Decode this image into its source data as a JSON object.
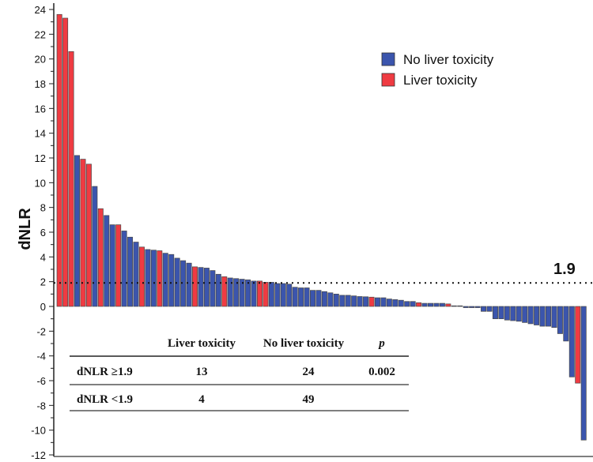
{
  "chart_data": {
    "type": "bar",
    "title": "",
    "xlabel": "",
    "ylabel": "dNLR",
    "ylim": [
      -12,
      24
    ],
    "yticks": [
      -12,
      -10,
      -8,
      -6,
      -4,
      -2,
      0,
      2,
      4,
      6,
      8,
      10,
      12,
      14,
      16,
      18,
      20,
      22,
      24
    ],
    "grid": false,
    "legend_position": "top-right",
    "colors": {
      "no_liver_toxicity": "#3b55ad",
      "liver_toxicity": "#ef3b42"
    },
    "legend": [
      {
        "label": "No liver toxicity",
        "key": "B"
      },
      {
        "label": "Liver toxicity",
        "key": "R"
      }
    ],
    "threshold": {
      "value": 1.9,
      "label": "1.9"
    },
    "values": [
      23.6,
      23.3,
      20.6,
      12.2,
      11.9,
      11.5,
      9.7,
      7.9,
      7.35,
      6.6,
      6.6,
      6.1,
      5.6,
      5.2,
      4.8,
      4.6,
      4.55,
      4.5,
      4.3,
      4.2,
      3.9,
      3.7,
      3.5,
      3.2,
      3.15,
      3.1,
      2.9,
      2.6,
      2.4,
      2.3,
      2.25,
      2.2,
      2.15,
      2.05,
      2.05,
      1.95,
      1.95,
      1.85,
      1.85,
      1.8,
      1.55,
      1.5,
      1.5,
      1.3,
      1.3,
      1.2,
      1.1,
      1.0,
      0.9,
      0.9,
      0.85,
      0.8,
      0.78,
      0.75,
      0.7,
      0.7,
      0.6,
      0.55,
      0.5,
      0.4,
      0.4,
      0.3,
      0.25,
      0.25,
      0.25,
      0.25,
      0.2,
      0.05,
      0.05,
      -0.1,
      -0.1,
      -0.1,
      -0.4,
      -0.4,
      -1.0,
      -1.0,
      -1.1,
      -1.15,
      -1.2,
      -1.3,
      -1.4,
      -1.5,
      -1.6,
      -1.6,
      -1.7,
      -2.2,
      -2.8,
      -5.7,
      -6.2,
      -10.8
    ],
    "groups": "RRRBRRBRBBRBBBRBBRBBBBBRBBBBRBBBBBRRBBBBBBBBBBBBBBBBBRBBBBBBBRBBBBRBBBBBBBBBBBBBBBBBBBBBRB",
    "table": {
      "headers": [
        "",
        "Liver toxicity",
        "No liver toxicity",
        "p"
      ],
      "rows": [
        [
          "dNLR ≥1.9",
          "13",
          "24",
          "0.002"
        ],
        [
          "dNLR <1.9",
          "4",
          "49",
          ""
        ]
      ]
    }
  }
}
